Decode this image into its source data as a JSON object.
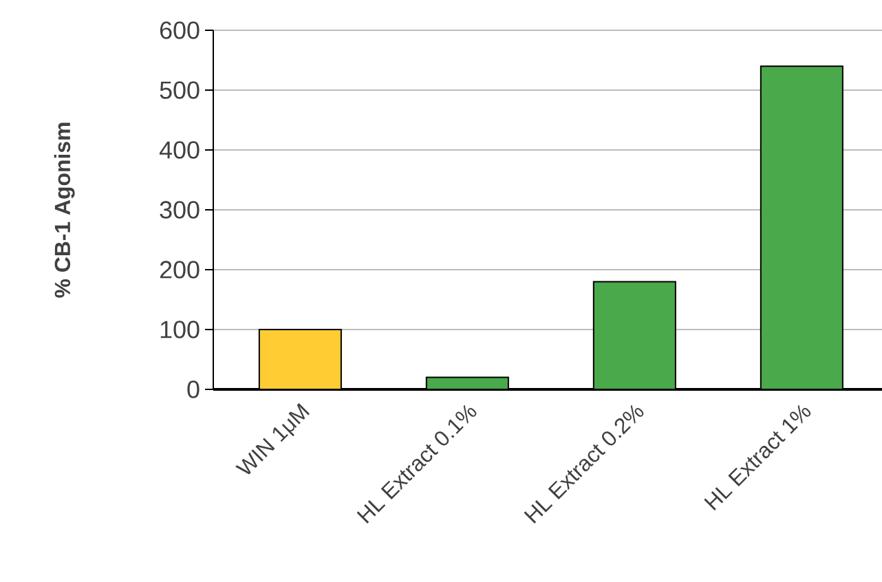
{
  "chart_data": {
    "type": "bar",
    "ylabel": "% CB-1 Agonism",
    "categories": [
      "WIN 1μM",
      "HL Extract  0.1%",
      "HL Extract 0.2%",
      "HL Extract 1%"
    ],
    "values": [
      100,
      20,
      180,
      540
    ],
    "colors": [
      "#ffcc33",
      "#4aa94a",
      "#4aa94a",
      "#4aa94a"
    ],
    "ylim": [
      0,
      600
    ],
    "yticks": [
      0,
      100,
      200,
      300,
      400,
      500,
      600
    ],
    "grid": "y"
  }
}
